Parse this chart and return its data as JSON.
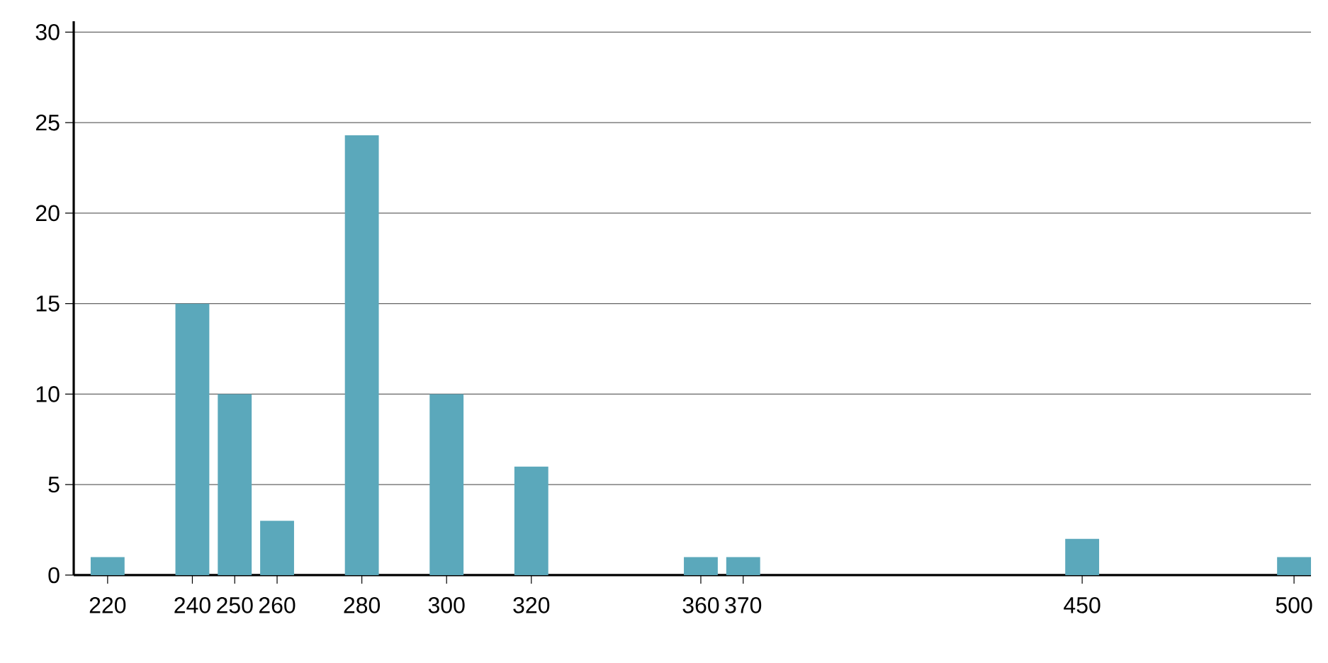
{
  "chart_data": {
    "type": "bar",
    "x": [
      220,
      240,
      250,
      260,
      280,
      300,
      320,
      360,
      370,
      450,
      500
    ],
    "values": [
      1,
      15,
      10,
      3,
      24.3,
      10,
      6,
      1,
      1,
      2,
      1
    ],
    "color": "#5ba8bb",
    "xlim": [
      212,
      504
    ],
    "ylim": [
      0,
      30.6
    ],
    "xticks": [
      220,
      240,
      250,
      260,
      280,
      300,
      320,
      360,
      370,
      450,
      500
    ],
    "yticks": [
      0,
      5,
      10,
      15,
      20,
      25,
      30
    ],
    "grid": "y"
  }
}
